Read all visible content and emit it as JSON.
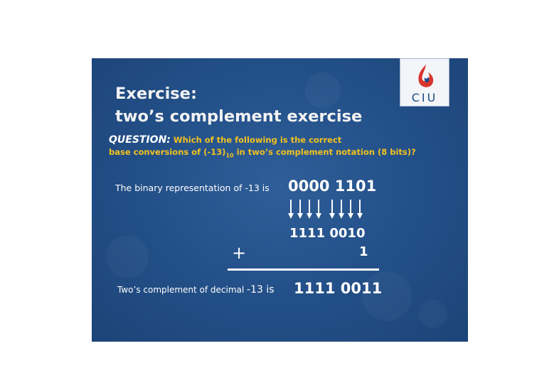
{
  "slide": {
    "title_line1": "Exercise:",
    "title_line2": "two’s complement exercise",
    "logo_text": "CIU",
    "question": {
      "label": "QUESTION:",
      "text1": "Which of the following is the correct",
      "text2_pre": "base conversions of (-13)",
      "text2_sub": "10",
      "text2_post": " in two’s complement notation (8 bits)?"
    },
    "binary_rep_label": "The binary representation of -13 is",
    "binary_value": "0000 1101",
    "inverted_value": "1111 0010",
    "plus_sign": "+",
    "add_one": "1",
    "result_label_pre": "Two’s complement of decimal ",
    "result_label_num": "-13 is",
    "result_value": "1111 0011"
  },
  "colors": {
    "background": "#24518a",
    "title": "#f2f2f2",
    "question": "#f2c21f",
    "logo_red": "#d9342b"
  }
}
